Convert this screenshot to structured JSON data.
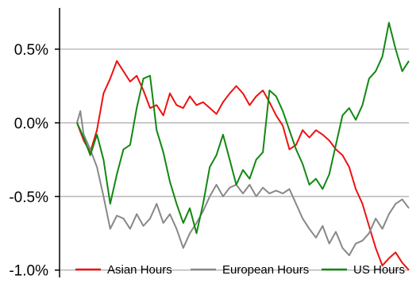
{
  "chart_data": {
    "type": "line",
    "title": "",
    "xlabel": "",
    "ylabel": "",
    "ylim": [
      -1.05,
      0.78
    ],
    "xlim": [
      0,
      100
    ],
    "y_ticks": [
      {
        "value": 0.5,
        "label": "0.5%"
      },
      {
        "value": 0.0,
        "label": "0.0%"
      },
      {
        "value": -0.5,
        "label": "-0.5%"
      },
      {
        "value": -1.0,
        "label": "-1.0%"
      }
    ],
    "grid": "horizontal",
    "legend_position": "bottom",
    "series": [
      {
        "name": "Asian Hours",
        "color": "#ee1111",
        "points": [
          [
            0,
            0.0
          ],
          [
            2,
            -0.12
          ],
          [
            4,
            -0.2
          ],
          [
            6,
            -0.05
          ],
          [
            8,
            0.2
          ],
          [
            10,
            0.3
          ],
          [
            12,
            0.42
          ],
          [
            14,
            0.35
          ],
          [
            16,
            0.28
          ],
          [
            18,
            0.32
          ],
          [
            20,
            0.22
          ],
          [
            22,
            0.1
          ],
          [
            24,
            0.12
          ],
          [
            26,
            0.05
          ],
          [
            28,
            0.2
          ],
          [
            30,
            0.12
          ],
          [
            32,
            0.1
          ],
          [
            34,
            0.18
          ],
          [
            36,
            0.12
          ],
          [
            38,
            0.14
          ],
          [
            40,
            0.1
          ],
          [
            42,
            0.06
          ],
          [
            44,
            0.14
          ],
          [
            46,
            0.2
          ],
          [
            48,
            0.25
          ],
          [
            50,
            0.2
          ],
          [
            52,
            0.12
          ],
          [
            54,
            0.18
          ],
          [
            56,
            0.22
          ],
          [
            58,
            0.14
          ],
          [
            60,
            0.05
          ],
          [
            62,
            -0.02
          ],
          [
            64,
            -0.18
          ],
          [
            66,
            -0.15
          ],
          [
            68,
            -0.05
          ],
          [
            70,
            -0.1
          ],
          [
            72,
            -0.05
          ],
          [
            74,
            -0.08
          ],
          [
            76,
            -0.12
          ],
          [
            78,
            -0.18
          ],
          [
            80,
            -0.22
          ],
          [
            82,
            -0.3
          ],
          [
            84,
            -0.45
          ],
          [
            86,
            -0.55
          ],
          [
            88,
            -0.7
          ],
          [
            90,
            -0.85
          ],
          [
            92,
            -0.97
          ],
          [
            94,
            -0.92
          ],
          [
            96,
            -0.88
          ],
          [
            98,
            -0.95
          ],
          [
            100,
            -1.0
          ]
        ]
      },
      {
        "name": "European Hours",
        "color": "#888888",
        "points": [
          [
            0,
            0.0
          ],
          [
            1,
            0.08
          ],
          [
            2,
            -0.08
          ],
          [
            4,
            -0.18
          ],
          [
            6,
            -0.3
          ],
          [
            8,
            -0.5
          ],
          [
            10,
            -0.72
          ],
          [
            12,
            -0.63
          ],
          [
            14,
            -0.65
          ],
          [
            16,
            -0.72
          ],
          [
            18,
            -0.62
          ],
          [
            20,
            -0.7
          ],
          [
            22,
            -0.65
          ],
          [
            24,
            -0.55
          ],
          [
            26,
            -0.68
          ],
          [
            28,
            -0.62
          ],
          [
            30,
            -0.72
          ],
          [
            32,
            -0.85
          ],
          [
            34,
            -0.75
          ],
          [
            36,
            -0.68
          ],
          [
            38,
            -0.6
          ],
          [
            40,
            -0.5
          ],
          [
            42,
            -0.42
          ],
          [
            44,
            -0.5
          ],
          [
            46,
            -0.44
          ],
          [
            48,
            -0.42
          ],
          [
            50,
            -0.48
          ],
          [
            52,
            -0.42
          ],
          [
            54,
            -0.5
          ],
          [
            56,
            -0.44
          ],
          [
            58,
            -0.48
          ],
          [
            60,
            -0.46
          ],
          [
            62,
            -0.48
          ],
          [
            64,
            -0.45
          ],
          [
            66,
            -0.55
          ],
          [
            68,
            -0.65
          ],
          [
            70,
            -0.72
          ],
          [
            72,
            -0.78
          ],
          [
            74,
            -0.7
          ],
          [
            76,
            -0.82
          ],
          [
            78,
            -0.74
          ],
          [
            80,
            -0.85
          ],
          [
            82,
            -0.9
          ],
          [
            84,
            -0.82
          ],
          [
            86,
            -0.8
          ],
          [
            88,
            -0.75
          ],
          [
            90,
            -0.65
          ],
          [
            92,
            -0.72
          ],
          [
            94,
            -0.62
          ],
          [
            96,
            -0.55
          ],
          [
            98,
            -0.52
          ],
          [
            100,
            -0.58
          ]
        ]
      },
      {
        "name": "US Hours",
        "color": "#118811",
        "points": [
          [
            0,
            0.0
          ],
          [
            2,
            -0.1
          ],
          [
            4,
            -0.22
          ],
          [
            6,
            -0.08
          ],
          [
            8,
            -0.25
          ],
          [
            10,
            -0.55
          ],
          [
            12,
            -0.35
          ],
          [
            14,
            -0.18
          ],
          [
            16,
            -0.15
          ],
          [
            18,
            0.1
          ],
          [
            20,
            0.3
          ],
          [
            22,
            0.32
          ],
          [
            24,
            -0.05
          ],
          [
            26,
            -0.2
          ],
          [
            28,
            -0.4
          ],
          [
            30,
            -0.55
          ],
          [
            32,
            -0.68
          ],
          [
            34,
            -0.58
          ],
          [
            36,
            -0.75
          ],
          [
            38,
            -0.55
          ],
          [
            40,
            -0.3
          ],
          [
            42,
            -0.22
          ],
          [
            44,
            -0.08
          ],
          [
            46,
            -0.25
          ],
          [
            48,
            -0.42
          ],
          [
            50,
            -0.32
          ],
          [
            52,
            -0.38
          ],
          [
            54,
            -0.25
          ],
          [
            56,
            -0.2
          ],
          [
            58,
            0.22
          ],
          [
            60,
            0.18
          ],
          [
            62,
            0.08
          ],
          [
            64,
            -0.05
          ],
          [
            66,
            -0.18
          ],
          [
            68,
            -0.28
          ],
          [
            70,
            -0.42
          ],
          [
            72,
            -0.38
          ],
          [
            74,
            -0.45
          ],
          [
            76,
            -0.35
          ],
          [
            78,
            -0.15
          ],
          [
            80,
            0.05
          ],
          [
            82,
            0.1
          ],
          [
            84,
            0.02
          ],
          [
            86,
            0.12
          ],
          [
            88,
            0.3
          ],
          [
            90,
            0.35
          ],
          [
            92,
            0.45
          ],
          [
            94,
            0.68
          ],
          [
            96,
            0.5
          ],
          [
            98,
            0.35
          ],
          [
            100,
            0.42
          ]
        ]
      }
    ]
  }
}
